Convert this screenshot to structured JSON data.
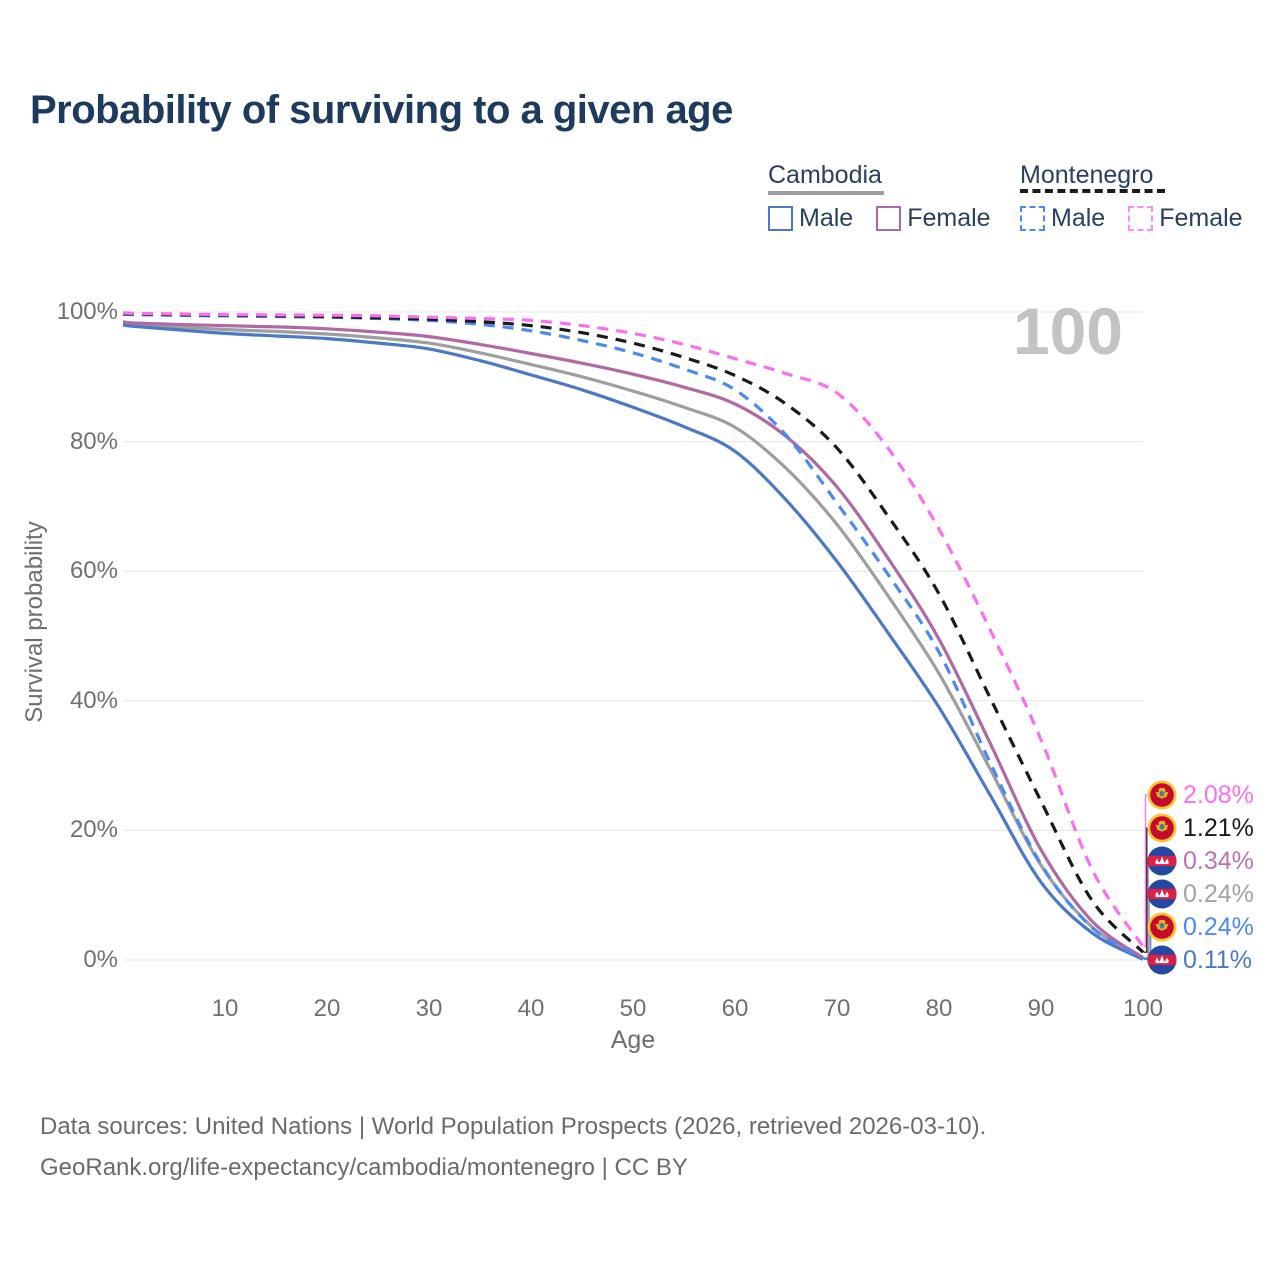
{
  "title": "Probability of surviving to a given age",
  "watermark": "100",
  "legend": {
    "cambodia": {
      "label": "Cambodia",
      "line_style": "solid",
      "line_color": "#9e9e9e",
      "items": [
        {
          "label": "Male",
          "color": "#4a79c6",
          "dash": "solid"
        },
        {
          "label": "Female",
          "color": "#b069a4",
          "dash": "solid"
        }
      ]
    },
    "montenegro": {
      "label": "Montenegro",
      "line_style": "dashed",
      "line_color": "#1a1a1a",
      "items": [
        {
          "label": "Male",
          "color": "#4b8af3",
          "dash": "dashed"
        },
        {
          "label": "Female",
          "color": "#fb8df3",
          "dash": "dashed"
        }
      ]
    }
  },
  "axes": {
    "y": {
      "label": "Survival probability",
      "ticks": [
        "0%",
        "20%",
        "40%",
        "60%",
        "80%",
        "100%"
      ],
      "tick_values": [
        0,
        20,
        40,
        60,
        80,
        100
      ],
      "range": [
        0,
        100
      ],
      "grid": true
    },
    "x": {
      "label": "Age",
      "ticks": [
        10,
        20,
        30,
        40,
        50,
        60,
        70,
        80,
        90,
        100
      ],
      "range": [
        0,
        100
      ]
    }
  },
  "chart_data": {
    "type": "line",
    "title": "Probability of surviving to a given age",
    "xlabel": "Age",
    "ylabel": "Survival probability",
    "ylim": [
      0,
      100
    ],
    "legend_position": "top-right",
    "x_ages": [
      0,
      1,
      5,
      10,
      15,
      20,
      25,
      30,
      35,
      40,
      45,
      50,
      55,
      60,
      65,
      70,
      75,
      80,
      85,
      90,
      95,
      100
    ],
    "series": [
      {
        "name": "Cambodia Male",
        "country": "Cambodia",
        "sex": "Male",
        "color": "#4a79c6",
        "dash": "solid",
        "end_label": "0.11%",
        "end_value": 0.11,
        "values": [
          98.0,
          97.8,
          97.3,
          96.7,
          96.3,
          95.9,
          95.2,
          94.3,
          92.5,
          90.3,
          88.0,
          85.3,
          82.3,
          78.5,
          71.0,
          61.5,
          50.5,
          39.0,
          25.5,
          12.0,
          4.2,
          0.11
        ]
      },
      {
        "name": "Cambodia Female",
        "country": "Cambodia",
        "sex": "Female",
        "color": "#b069a4",
        "dash": "solid",
        "end_label": "0.34%",
        "end_value": 0.34,
        "values": [
          98.5,
          98.3,
          98.1,
          97.9,
          97.7,
          97.4,
          96.9,
          96.2,
          95.0,
          93.6,
          92.1,
          90.4,
          88.4,
          85.8,
          80.8,
          73.0,
          62.0,
          49.5,
          33.5,
          17.0,
          6.0,
          0.34
        ]
      },
      {
        "name": "Cambodia Both sexes",
        "country": "Cambodia",
        "sex": "Both",
        "color": "#9e9e9e",
        "dash": "solid",
        "end_label": "0.24%",
        "end_value": 0.24,
        "values": [
          98.25,
          98.05,
          97.7,
          97.3,
          97.0,
          96.6,
          96.0,
          95.2,
          93.7,
          91.9,
          90.0,
          87.8,
          85.3,
          82.2,
          75.9,
          67.2,
          56.2,
          44.2,
          29.5,
          14.6,
          5.1,
          0.24
        ]
      },
      {
        "name": "Montenegro Male",
        "country": "Montenegro",
        "sex": "Male",
        "color": "#4b8af3",
        "dash": "dashed",
        "end_label": "0.24%",
        "end_value": 0.24,
        "values": [
          99.65,
          99.6,
          99.5,
          99.4,
          99.3,
          99.2,
          99.0,
          98.7,
          98.1,
          97.1,
          95.6,
          93.7,
          91.2,
          88.0,
          81.0,
          70.5,
          59.5,
          47.5,
          30.5,
          14.8,
          5.0,
          0.24
        ]
      },
      {
        "name": "Montenegro Both sexes",
        "country": "Montenegro",
        "sex": "Both",
        "color": "#1a1a1a",
        "dash": "dashed",
        "end_label": "1.21%",
        "end_value": 1.21,
        "values": [
          99.75,
          99.7,
          99.6,
          99.5,
          99.4,
          99.3,
          99.1,
          98.9,
          98.5,
          97.9,
          96.8,
          95.2,
          93.0,
          90.2,
          85.8,
          79.0,
          68.5,
          56.5,
          40.5,
          24.5,
          9.2,
          1.21
        ]
      },
      {
        "name": "Montenegro Female",
        "country": "Montenegro",
        "sex": "Female",
        "color": "#fb6ef1",
        "dash": "dashed",
        "end_label": "2.08%",
        "end_value": 2.08,
        "values": [
          99.85,
          99.8,
          99.7,
          99.6,
          99.55,
          99.5,
          99.4,
          99.2,
          99.0,
          98.7,
          97.9,
          96.7,
          95.0,
          92.8,
          90.5,
          87.5,
          79.0,
          66.5,
          51.0,
          34.0,
          14.0,
          2.08
        ]
      }
    ]
  },
  "end_labels": [
    {
      "value": "2.08%",
      "color": "#fb6ef1",
      "flag": "montenegro",
      "series": "Montenegro Female",
      "end_value": 2.08
    },
    {
      "value": "1.21%",
      "color": "#1a1a1a",
      "flag": "montenegro",
      "series": "Montenegro Both sexes",
      "end_value": 1.21
    },
    {
      "value": "0.34%",
      "color": "#bd74ad",
      "flag": "cambodia",
      "series": "Cambodia Female",
      "end_value": 0.34
    },
    {
      "value": "0.24%",
      "color": "#a3a3a3",
      "flag": "cambodia",
      "series": "Cambodia Both sexes",
      "end_value": 0.24
    },
    {
      "value": "0.24%",
      "color": "#4b8af3",
      "flag": "montenegro",
      "series": "Montenegro Male",
      "end_value": 0.24
    },
    {
      "value": "0.11%",
      "color": "#4a79c6",
      "flag": "cambodia",
      "series": "Cambodia Male",
      "end_value": 0.11
    }
  ],
  "footer": {
    "line1": "Data sources: United Nations | World Population Prospects (2026, retrieved 2026-03-10).",
    "line2": "GeoRank.org/life-expectancy/cambodia/montenegro | CC BY"
  }
}
